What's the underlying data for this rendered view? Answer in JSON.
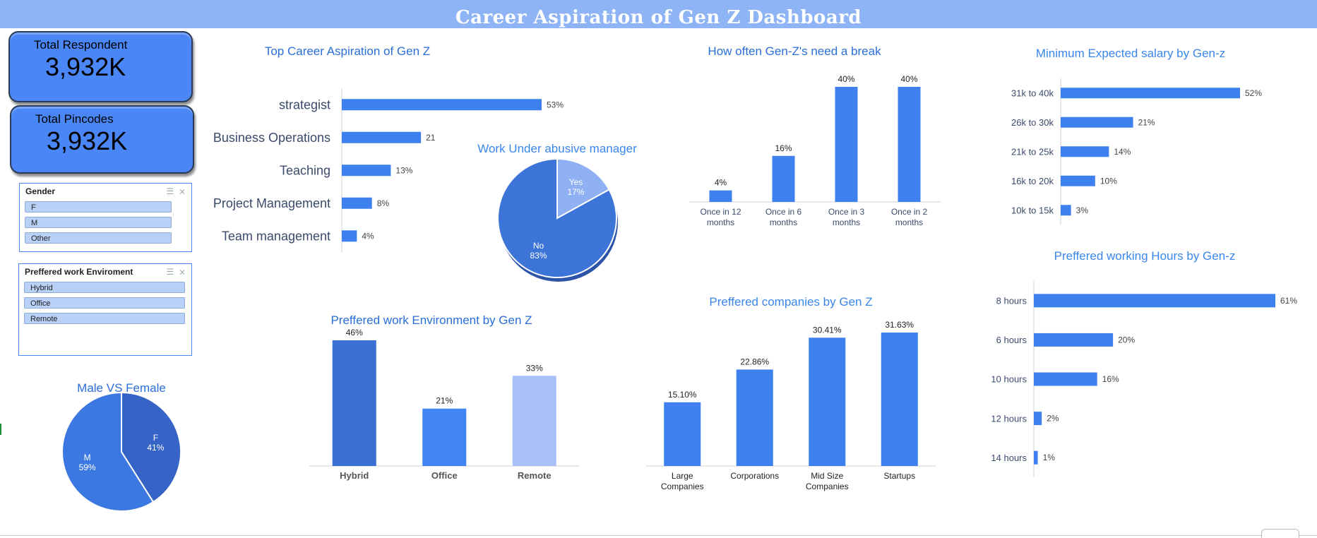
{
  "header": {
    "title": "Career Aspiration of Gen Z Dashboard"
  },
  "kpis": [
    {
      "label": "Total Respondent",
      "value": "3,932K"
    },
    {
      "label": "Total Pincodes",
      "value": "3,932K"
    }
  ],
  "slicers": {
    "gender": {
      "title": "Gender",
      "items": [
        "F",
        "M",
        "Other"
      ]
    },
    "work_environment": {
      "title": "Preffered work Enviroment",
      "items": [
        "Hybrid",
        "Office",
        "Remote"
      ]
    }
  },
  "chart_data": [
    {
      "id": "career",
      "type": "bar",
      "orientation": "horizontal",
      "title": "Top Career Aspiration of Gen Z",
      "categories": [
        "strategist",
        "Business Operations",
        "Teaching",
        "Project Management",
        "Team management"
      ],
      "values": [
        53,
        21,
        13,
        8,
        4
      ],
      "labels": [
        "53%",
        "21",
        "13%",
        "8%",
        "4%"
      ],
      "color": "#3f80ef"
    },
    {
      "id": "abusive",
      "type": "pie",
      "title": "Work Under abusive manager",
      "slices": [
        {
          "name": "Yes",
          "value": 17,
          "label": "17%",
          "color": "#8fb0f2"
        },
        {
          "name": "No",
          "value": 83,
          "label": "83%",
          "color": "#3d74d8"
        }
      ]
    },
    {
      "id": "break",
      "type": "bar",
      "title": "How often Gen-Z's need a break",
      "categories": [
        "Once in 12 months",
        "Once in 6 months",
        "Once in 3 months",
        "Once in 2 months"
      ],
      "values": [
        4,
        16,
        40,
        40
      ],
      "labels": [
        "4%",
        "16%",
        "40%",
        "40%"
      ],
      "color": "#3f80ef"
    },
    {
      "id": "salary",
      "type": "bar",
      "orientation": "horizontal",
      "title": "Minimum Expected salary by Gen-z",
      "categories": [
        "31k to 40k",
        "26k to 30k",
        "21k to 25k",
        "16k to 20k",
        "10k to 15k"
      ],
      "values": [
        52,
        21,
        14,
        10,
        3
      ],
      "labels": [
        "52%",
        "21%",
        "14%",
        "10%",
        "3%"
      ],
      "color": "#3f80ef"
    },
    {
      "id": "hours",
      "type": "bar",
      "orientation": "horizontal",
      "title": "Preffered working Hours by Gen-z",
      "categories": [
        "8 hours",
        "6 hours",
        "10 hours",
        "12 hours",
        "14 hours"
      ],
      "values": [
        61,
        20,
        16,
        2,
        1
      ],
      "labels": [
        "61%",
        "20%",
        "16%",
        "2%",
        "1%"
      ],
      "color": "#3f80ef"
    },
    {
      "id": "environment",
      "type": "bar",
      "title": "Preffered work Environment by Gen Z",
      "categories": [
        "Hybrid",
        "Office",
        "Remote"
      ],
      "values": [
        46,
        21,
        33
      ],
      "labels": [
        "46%",
        "21%",
        "33%"
      ],
      "colors": [
        "#3a6fd4",
        "#4185f2",
        "#a9bff7"
      ]
    },
    {
      "id": "companies",
      "type": "bar",
      "title": "Preffered companies by Gen Z",
      "categories": [
        "Large Companies",
        "Corporations",
        "Mid Size Companies",
        "Startups"
      ],
      "values": [
        15.1,
        22.86,
        30.41,
        31.63
      ],
      "labels": [
        "15.10%",
        "22.86%",
        "30.41%",
        "31.63%"
      ],
      "color": "#3f80ef"
    },
    {
      "id": "gender",
      "type": "pie",
      "title": "Male VS Female",
      "slices": [
        {
          "name": "F",
          "value": 41,
          "label": "41%",
          "color": "#3563c6"
        },
        {
          "name": "M",
          "value": 59,
          "label": "59%",
          "color": "#3c78e2"
        }
      ]
    }
  ]
}
